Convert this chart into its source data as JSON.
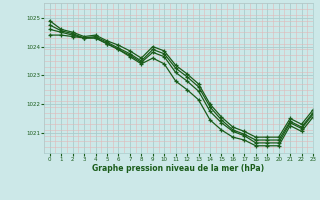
{
  "xlabel": "Graphe pression niveau de la mer (hPa)",
  "ylim": [
    1020.3,
    1025.4
  ],
  "xlim": [
    -0.5,
    23
  ],
  "yticks": [
    1021,
    1022,
    1023,
    1024,
    1025
  ],
  "xticks": [
    0,
    1,
    2,
    3,
    4,
    5,
    6,
    7,
    8,
    9,
    10,
    11,
    12,
    13,
    14,
    15,
    16,
    17,
    18,
    19,
    20,
    21,
    22,
    23
  ],
  "bg_color": "#cce8e8",
  "grid_color": "#aacccc",
  "line_color": "#1a5c1a",
  "curve1": [
    1024.9,
    1024.6,
    1024.5,
    1024.35,
    1024.4,
    1024.2,
    1024.05,
    1023.85,
    1023.6,
    1024.0,
    1023.85,
    1023.35,
    1023.05,
    1022.7,
    1022.0,
    1021.55,
    1021.2,
    1021.05,
    1020.85,
    1020.85,
    1020.85,
    1021.5,
    1021.3,
    1021.8
  ],
  "curve2": [
    1024.75,
    1024.55,
    1024.45,
    1024.3,
    1024.35,
    1024.15,
    1023.95,
    1023.75,
    1023.5,
    1023.9,
    1023.75,
    1023.25,
    1022.95,
    1022.6,
    1021.9,
    1021.45,
    1021.1,
    1020.95,
    1020.75,
    1020.75,
    1020.75,
    1021.4,
    1021.2,
    1021.7
  ],
  "curve3": [
    1024.6,
    1024.5,
    1024.4,
    1024.3,
    1024.3,
    1024.1,
    1023.9,
    1023.7,
    1023.45,
    1023.8,
    1023.65,
    1023.1,
    1022.8,
    1022.45,
    1021.75,
    1021.35,
    1021.05,
    1020.9,
    1020.65,
    1020.65,
    1020.65,
    1021.35,
    1021.15,
    1021.65
  ],
  "curve4": [
    1024.4,
    1024.4,
    1024.35,
    1024.3,
    1024.3,
    1024.1,
    1023.9,
    1023.65,
    1023.4,
    1023.6,
    1023.4,
    1022.8,
    1022.5,
    1022.15,
    1021.45,
    1021.1,
    1020.85,
    1020.75,
    1020.55,
    1020.55,
    1020.55,
    1021.25,
    1021.05,
    1021.55
  ]
}
